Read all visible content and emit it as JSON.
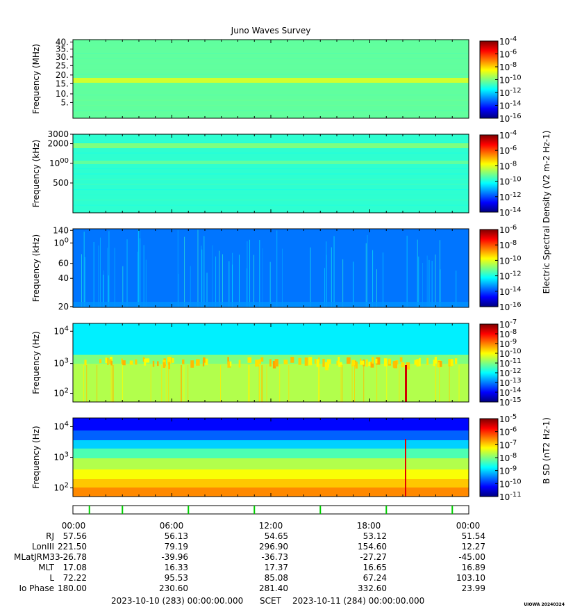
{
  "title": "Juno Waves Survey",
  "colors": {
    "jet": [
      "#00007f",
      "#0000ff",
      "#007fff",
      "#00ffff",
      "#7fff7f",
      "#ffff00",
      "#ff7f00",
      "#ff0000",
      "#7f0000"
    ],
    "marker_green": "#00cc00"
  },
  "panels": [
    {
      "id": "hfr-mhz",
      "ylabel": "Frequency (MHz)",
      "scale": "linear",
      "ticks": [
        "40.",
        "35.",
        "30.",
        "25.",
        "20.",
        "15.",
        "10.",
        "5."
      ],
      "cbar_ticks": [
        "10-4",
        "10-6",
        "10-8",
        "10-10",
        "10-12",
        "10-14",
        "10-16"
      ],
      "background_level": 0.47,
      "band_level": 0.58
    },
    {
      "id": "hfr-khz",
      "ylabel": "Frequency (kHz)",
      "scale": "log",
      "ticks": [
        "3000",
        "2000",
        "1000",
        "500"
      ],
      "cbar_ticks": [
        "10-4",
        "10-6",
        "10-8",
        "10-10",
        "10-12",
        "10-14"
      ],
      "background_level": 0.42,
      "band_level": 0.5
    },
    {
      "id": "lfr-khz",
      "ylabel": "Frequency (kHz)",
      "scale": "log",
      "ticks": [
        "140",
        "100",
        "60",
        "40",
        "20"
      ],
      "cbar_ticks": [
        "10-6",
        "10-8",
        "10-10",
        "10-12",
        "10-14",
        "10-16"
      ],
      "background_level": 0.24,
      "band_level": 0.3
    },
    {
      "id": "lfr-hz-e",
      "ylabel": "Frequency (Hz)",
      "scale": "log",
      "ticks": [
        "10^4",
        "10^3",
        "10^2"
      ],
      "cbar_ticks": [
        "10-7",
        "10-8",
        "10-9",
        "10-10",
        "10-11",
        "10-12",
        "10-13",
        "10-14",
        "10-15"
      ],
      "background_level": 0.4,
      "band_level": 0.7
    },
    {
      "id": "lfr-hz-b",
      "ylabel": "Frequency (Hz)",
      "scale": "log",
      "ticks": [
        "10^4",
        "10^3",
        "10^2"
      ],
      "cbar_ticks": [
        "10-5",
        "10-6",
        "10-7",
        "10-8",
        "10-9",
        "10-10",
        "10-11"
      ],
      "background_level": 0.4,
      "band_level": 0.65
    }
  ],
  "cbar_label_e": "Electric Spectral Density (V2 m-2 Hz-1)",
  "cbar_label_b": "B SD (nT2 Hz-1)",
  "chart_data": {
    "type": "heatmap",
    "title": "Juno Waves Survey",
    "xlabel": "SCET",
    "x_ticks": [
      "00:00",
      "06:00",
      "12:00",
      "18:00",
      "00:00"
    ],
    "marker_hours": [
      1,
      3,
      7,
      11,
      15,
      19,
      23
    ],
    "ephemeris": {
      "labels": [
        "RJ",
        "LonIII",
        "MLatJRM33",
        "MLT",
        "L",
        "Io Phase"
      ],
      "rows": [
        [
          "57.56",
          "56.13",
          "54.65",
          "53.12",
          "51.54"
        ],
        [
          "221.50",
          "79.19",
          "296.90",
          "154.60",
          "12.27"
        ],
        [
          "-26.78",
          "-39.96",
          "-36.73",
          "-27.27",
          "-45.00"
        ],
        [
          "17.08",
          "16.33",
          "17.37",
          "16.65",
          "16.89"
        ],
        [
          "72.22",
          "95.53",
          "85.08",
          "67.24",
          "103.10"
        ],
        [
          "180.00",
          "230.60",
          "281.40",
          "332.60",
          "23.99"
        ]
      ]
    }
  },
  "footer": {
    "start": "2023-10-10 (283) 00:00:00.000",
    "scet": "SCET",
    "end": "2023-10-11 (284) 00:00:00.000"
  },
  "stamp": "UIOWA 20240324"
}
